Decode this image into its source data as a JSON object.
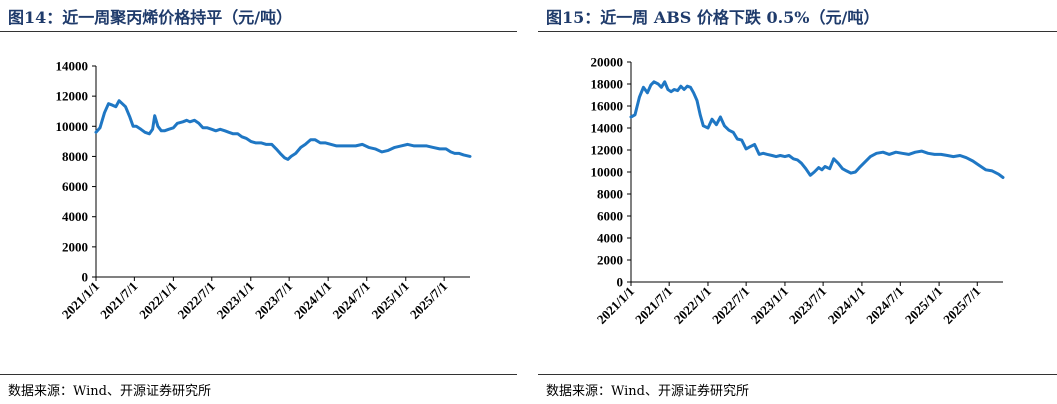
{
  "chart_data": [
    {
      "type": "line",
      "title": "图14：近一周聚丙烯价格持平（元/吨）",
      "source": "数据来源：Wind、开源证券研究所",
      "xlabel": "",
      "ylabel": "",
      "ylim": [
        0,
        14000
      ],
      "yticks": [
        "0",
        "2000",
        "4000",
        "6000",
        "8000",
        "10000",
        "12000",
        "14000"
      ],
      "xticks": [
        "2021/1/1",
        "2021/7/1",
        "2022/1/1",
        "2022/7/1",
        "2023/1/1",
        "2023/7/1",
        "2024/1/1",
        "2024/7/1",
        "2025/1/1",
        "2025/7/1"
      ],
      "x_range": [
        "2021-01-01",
        "2025-10-31"
      ],
      "line_color": "#1f77c4",
      "grid": false,
      "series": [
        {
          "x": [
            "2021-01-01",
            "2021-01-20",
            "2021-02-10",
            "2021-03-01",
            "2021-03-20",
            "2021-04-05",
            "2021-04-20",
            "2021-05-05",
            "2021-05-20",
            "2021-06-10",
            "2021-06-25",
            "2021-07-10",
            "2021-08-01",
            "2021-08-20",
            "2021-09-10",
            "2021-09-25",
            "2021-10-05",
            "2021-10-20",
            "2021-11-05",
            "2021-11-20",
            "2021-12-10",
            "2022-01-01",
            "2022-01-20",
            "2022-02-15",
            "2022-03-05",
            "2022-03-20",
            "2022-04-10",
            "2022-05-01",
            "2022-05-20",
            "2022-06-10",
            "2022-07-01",
            "2022-07-20",
            "2022-08-10",
            "2022-09-01",
            "2022-09-20",
            "2022-10-10",
            "2022-11-01",
            "2022-11-20",
            "2022-12-10",
            "2023-01-01",
            "2023-01-25",
            "2023-02-20",
            "2023-03-15",
            "2023-04-10",
            "2023-05-01",
            "2023-05-20",
            "2023-06-10",
            "2023-06-25",
            "2023-07-10",
            "2023-08-01",
            "2023-08-25",
            "2023-09-15",
            "2023-10-10",
            "2023-11-01",
            "2023-11-25",
            "2023-12-20",
            "2024-01-15",
            "2024-02-10",
            "2024-03-10",
            "2024-04-10",
            "2024-05-10",
            "2024-06-10",
            "2024-07-10",
            "2024-08-10",
            "2024-09-10",
            "2024-10-10",
            "2024-11-10",
            "2024-12-10",
            "2025-01-10",
            "2025-02-10",
            "2025-03-10",
            "2025-04-10",
            "2025-05-10",
            "2025-06-10",
            "2025-07-10",
            "2025-08-01",
            "2025-08-20",
            "2025-09-10",
            "2025-10-01",
            "2025-10-31"
          ],
          "y": [
            9600,
            9900,
            10900,
            11500,
            11400,
            11300,
            11700,
            11500,
            11300,
            10600,
            10000,
            10000,
            9800,
            9600,
            9500,
            9800,
            10700,
            10000,
            9700,
            9700,
            9800,
            9900,
            10200,
            10300,
            10400,
            10300,
            10400,
            10200,
            9900,
            9900,
            9800,
            9700,
            9800,
            9700,
            9600,
            9500,
            9500,
            9300,
            9200,
            9000,
            8900,
            8900,
            8800,
            8800,
            8500,
            8200,
            7900,
            7800,
            8000,
            8200,
            8600,
            8800,
            9100,
            9100,
            8900,
            8900,
            8800,
            8700,
            8700,
            8700,
            8700,
            8800,
            8600,
            8500,
            8300,
            8400,
            8600,
            8700,
            8800,
            8700,
            8700,
            8700,
            8600,
            8500,
            8500,
            8300,
            8200,
            8200,
            8100,
            8000
          ]
        }
      ]
    },
    {
      "type": "line",
      "title": "图15：近一周 ABS 价格下跌 0.5%（元/吨）",
      "source": "数据来源：Wind、开源证券研究所",
      "xlabel": "",
      "ylabel": "",
      "ylim": [
        0,
        20000
      ],
      "yticks": [
        "0",
        "2000",
        "4000",
        "6000",
        "8000",
        "10000",
        "12000",
        "14000",
        "16000",
        "18000",
        "20000"
      ],
      "xticks": [
        "2021/1/1",
        "2021/7/1",
        "2022/1/1",
        "2022/7/1",
        "2023/1/1",
        "2023/7/1",
        "2024/1/1",
        "2024/7/1",
        "2025/1/1",
        "2025/7/1"
      ],
      "x_range": [
        "2021-01-01",
        "2025-10-31"
      ],
      "line_color": "#1f77c4",
      "grid": false,
      "series": [
        {
          "x": [
            "2021-01-01",
            "2021-01-20",
            "2021-02-10",
            "2021-03-01",
            "2021-03-20",
            "2021-04-05",
            "2021-04-20",
            "2021-05-10",
            "2021-05-25",
            "2021-06-10",
            "2021-06-25",
            "2021-07-10",
            "2021-07-25",
            "2021-08-10",
            "2021-08-25",
            "2021-09-10",
            "2021-09-25",
            "2021-10-10",
            "2021-10-25",
            "2021-11-10",
            "2021-11-25",
            "2021-12-10",
            "2022-01-01",
            "2022-01-20",
            "2022-02-10",
            "2022-03-01",
            "2022-03-20",
            "2022-04-10",
            "2022-05-01",
            "2022-05-20",
            "2022-06-10",
            "2022-07-01",
            "2022-07-20",
            "2022-08-10",
            "2022-09-01",
            "2022-09-20",
            "2022-10-10",
            "2022-11-01",
            "2022-11-20",
            "2022-12-10",
            "2023-01-01",
            "2023-01-20",
            "2023-02-10",
            "2023-03-01",
            "2023-03-20",
            "2023-04-10",
            "2023-05-01",
            "2023-05-20",
            "2023-06-10",
            "2023-06-25",
            "2023-07-10",
            "2023-08-01",
            "2023-08-20",
            "2023-09-10",
            "2023-10-01",
            "2023-10-20",
            "2023-11-10",
            "2023-12-01",
            "2023-12-20",
            "2024-01-15",
            "2024-02-10",
            "2024-03-10",
            "2024-04-10",
            "2024-05-10",
            "2024-06-10",
            "2024-07-10",
            "2024-08-10",
            "2024-09-10",
            "2024-10-10",
            "2024-11-10",
            "2024-12-10",
            "2025-01-10",
            "2025-02-10",
            "2025-03-10",
            "2025-04-10",
            "2025-05-10",
            "2025-06-10",
            "2025-07-10",
            "2025-08-10",
            "2025-09-10",
            "2025-10-10",
            "2025-10-31"
          ],
          "y": [
            15000,
            15200,
            16800,
            17700,
            17200,
            17900,
            18200,
            18000,
            17700,
            18200,
            17500,
            17300,
            17500,
            17400,
            17800,
            17500,
            17800,
            17700,
            17200,
            16500,
            15200,
            14200,
            14000,
            14800,
            14300,
            15000,
            14200,
            13800,
            13600,
            13000,
            12900,
            12100,
            12300,
            12500,
            11600,
            11700,
            11600,
            11500,
            11400,
            11500,
            11400,
            11500,
            11200,
            11100,
            10800,
            10300,
            9700,
            10000,
            10400,
            10200,
            10500,
            10300,
            11200,
            10800,
            10300,
            10100,
            9900,
            10000,
            10400,
            10900,
            11400,
            11700,
            11800,
            11600,
            11800,
            11700,
            11600,
            11800,
            11900,
            11700,
            11600,
            11600,
            11500,
            11400,
            11500,
            11300,
            11000,
            10600,
            10200,
            10100,
            9800,
            9500
          ]
        }
      ]
    }
  ]
}
